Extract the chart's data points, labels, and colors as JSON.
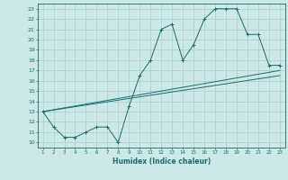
{
  "xlabel": "Humidex (Indice chaleur)",
  "bg_color": "#cde8e8",
  "grid_color": "#a8cccc",
  "line_color": "#1a6b6b",
  "xlim": [
    1,
    23
  ],
  "ylim": [
    10,
    23
  ],
  "xticks": [
    1,
    2,
    3,
    4,
    5,
    6,
    7,
    8,
    9,
    10,
    11,
    12,
    13,
    14,
    15,
    16,
    17,
    18,
    19,
    20,
    21,
    22,
    23
  ],
  "yticks": [
    10,
    11,
    12,
    13,
    14,
    15,
    16,
    17,
    18,
    19,
    20,
    21,
    22,
    23
  ],
  "line1_x": [
    1,
    2,
    3,
    4,
    5,
    6,
    7,
    8,
    9,
    10,
    11,
    12,
    13,
    14,
    15,
    16,
    17,
    18,
    19,
    20,
    21,
    22,
    23
  ],
  "line1_y": [
    13,
    11.5,
    10.5,
    10.5,
    11,
    11.5,
    11.5,
    10,
    13.5,
    16.5,
    18,
    21,
    21.5,
    18,
    19.5,
    22,
    23,
    23,
    23,
    20.5,
    20.5,
    17.5,
    17.5
  ],
  "line2_x": [
    1,
    23
  ],
  "line2_y": [
    13,
    17
  ],
  "line3_x": [
    1,
    23
  ],
  "line3_y": [
    13,
    16.5
  ]
}
